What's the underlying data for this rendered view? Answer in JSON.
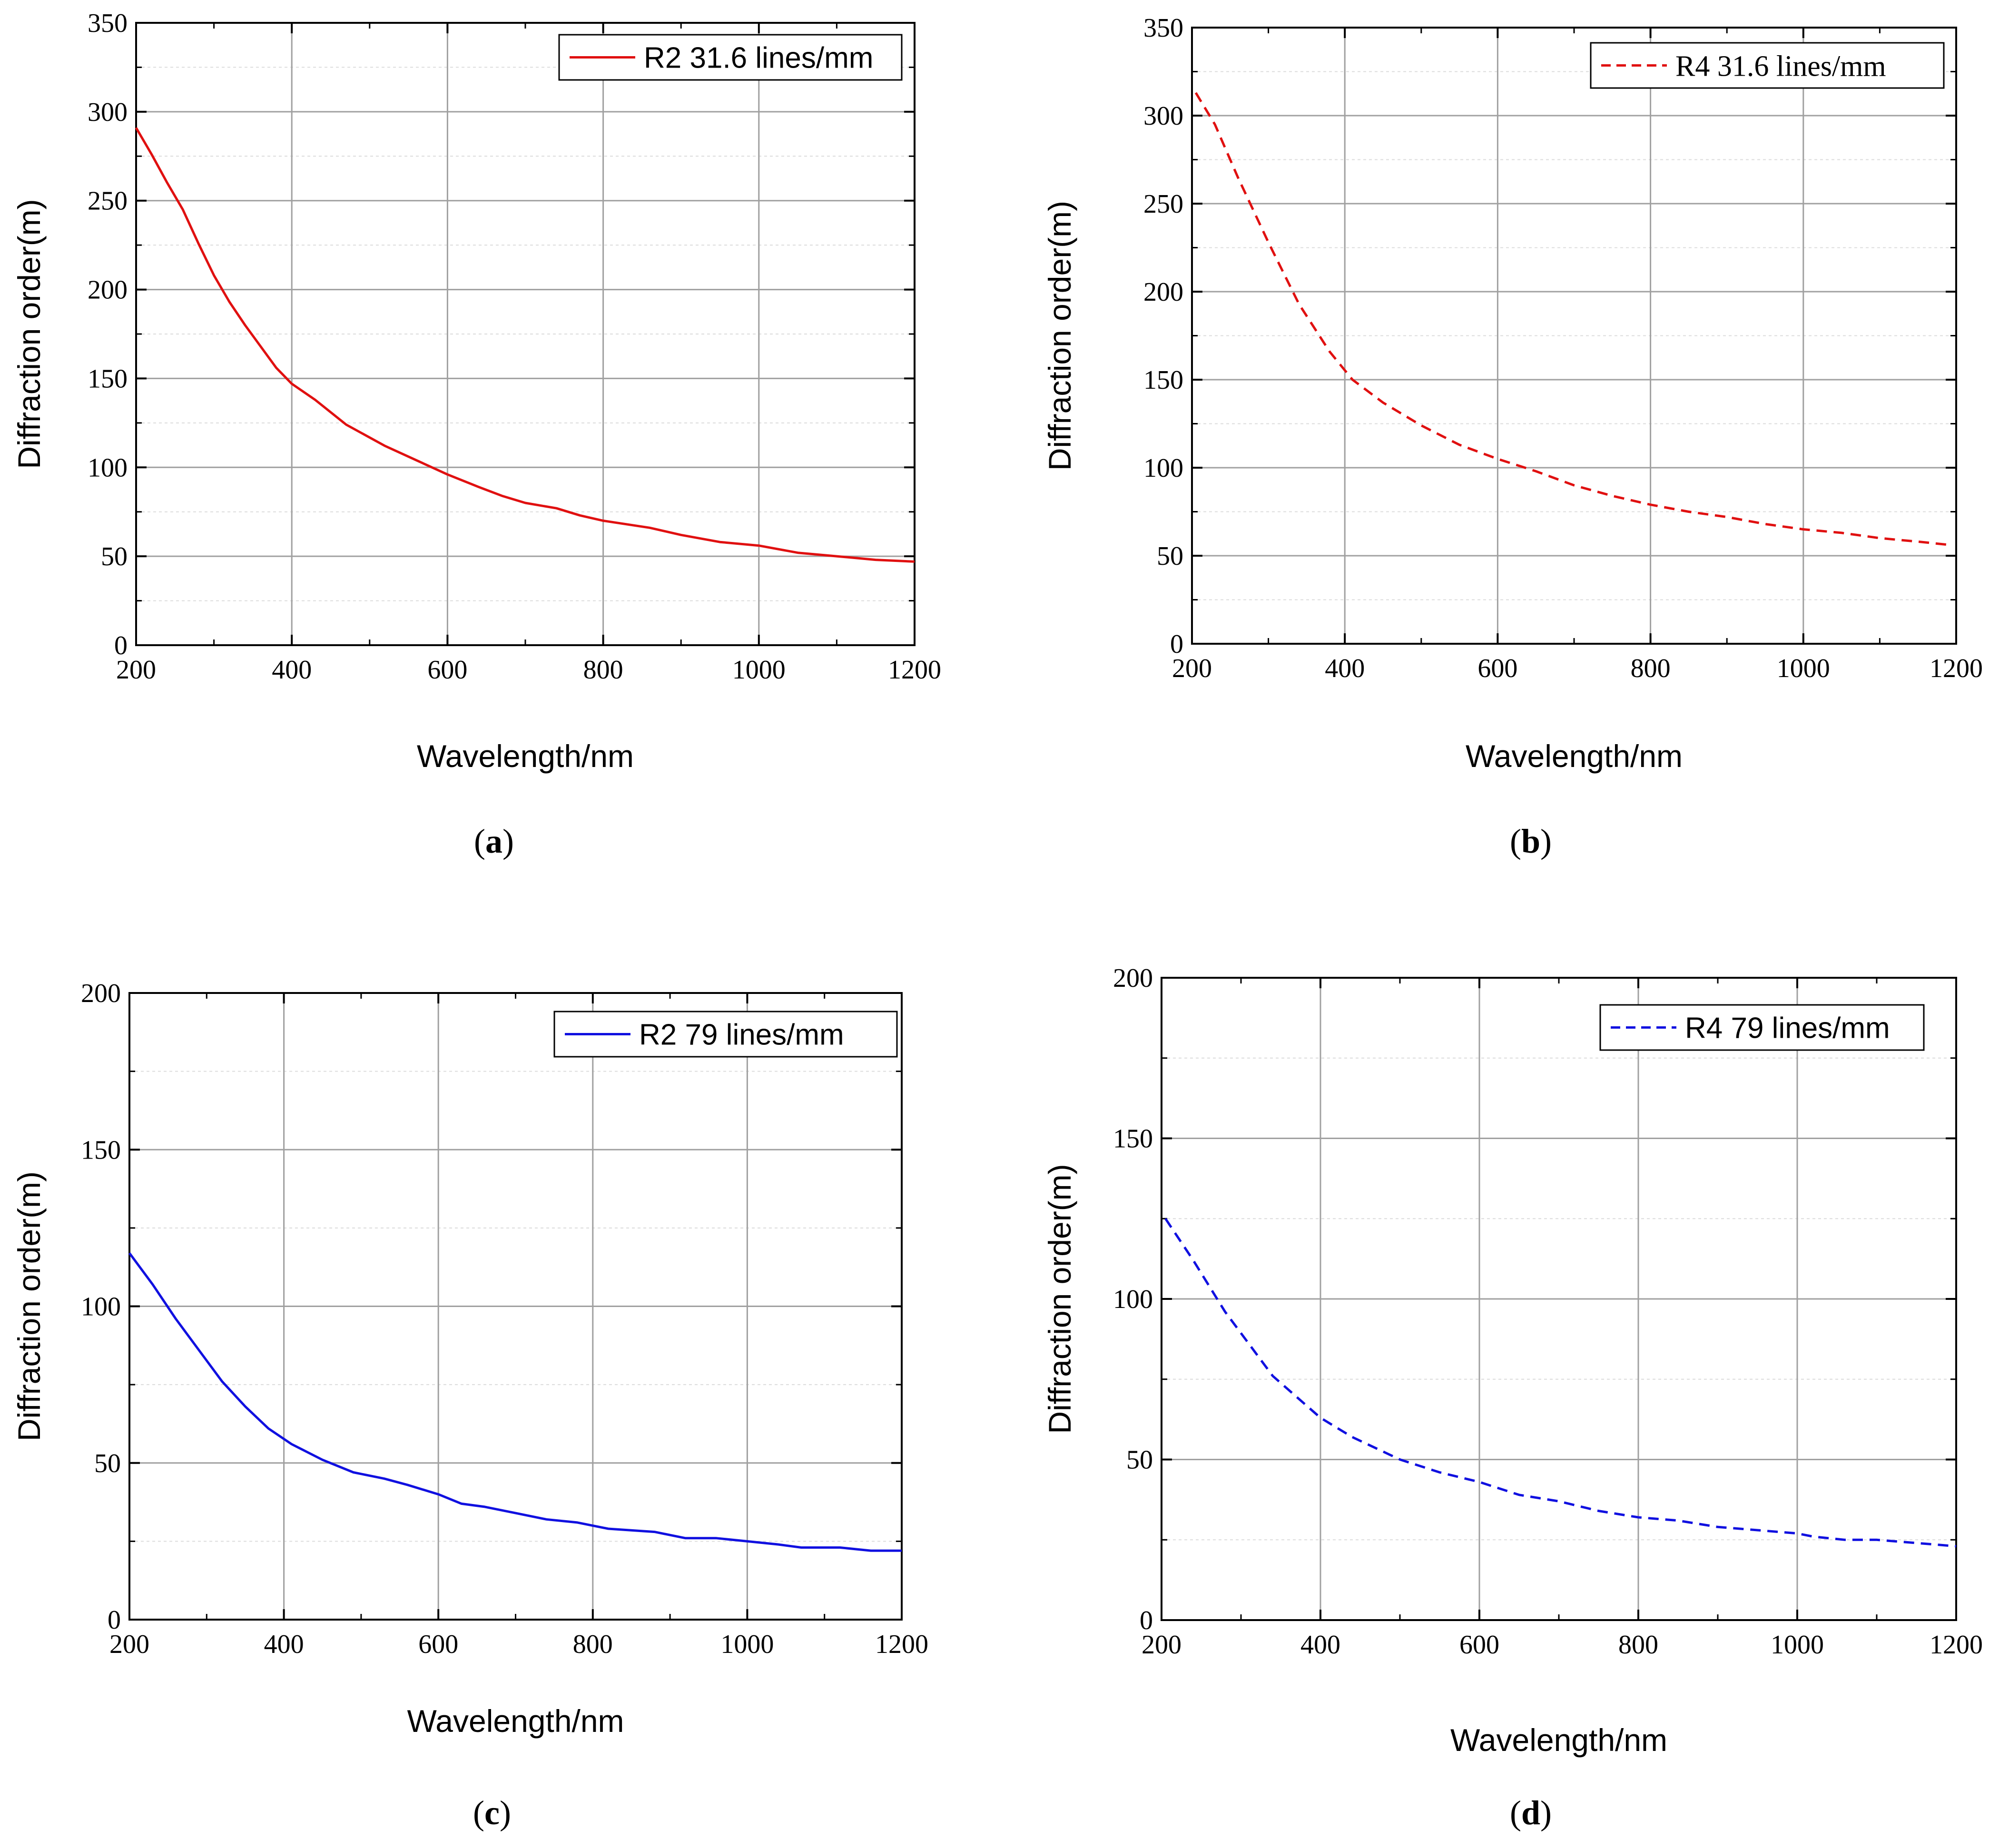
{
  "chart_data": [
    {
      "panel": "a",
      "type": "line",
      "title": "",
      "xlabel": "Wavelength/nm",
      "ylabel": "Diffraction order(m)",
      "xlim": [
        200,
        1200
      ],
      "ylim": [
        0,
        350
      ],
      "xticks": [
        200,
        400,
        600,
        800,
        1000,
        1200
      ],
      "yticks": [
        0,
        50,
        100,
        150,
        200,
        250,
        300,
        350
      ],
      "grid": true,
      "legend_position": "top-right",
      "panel_label": "a",
      "series": [
        {
          "name": "R2 31.6 lines/mm",
          "color": "#e01010",
          "dash": "solid",
          "x": [
            200,
            220,
            240,
            260,
            280,
            300,
            320,
            340,
            360,
            380,
            400,
            430,
            470,
            520,
            560,
            600,
            640,
            670,
            700,
            740,
            770,
            800,
            860,
            900,
            950,
            1000,
            1050,
            1100,
            1150,
            1200
          ],
          "y": [
            291,
            276,
            260,
            245,
            226,
            208,
            193,
            180,
            168,
            156,
            147,
            138,
            124,
            112,
            104,
            96,
            89,
            84,
            80,
            77,
            73,
            70,
            66,
            62,
            58,
            56,
            52,
            50,
            48,
            47
          ]
        }
      ]
    },
    {
      "panel": "b",
      "type": "line",
      "title": "",
      "xlabel": "Wavelength/nm",
      "ylabel": "Diffraction order(m)",
      "xlim": [
        200,
        1200
      ],
      "ylim": [
        0,
        350
      ],
      "xticks": [
        200,
        400,
        600,
        800,
        1000,
        1200
      ],
      "yticks": [
        0,
        50,
        100,
        150,
        200,
        250,
        300,
        350
      ],
      "grid": true,
      "legend_position": "top-right",
      "panel_label": "b",
      "series": [
        {
          "name": "R4 31.6 lines/mm",
          "color": "#e01010",
          "dash": "dashed",
          "x": [
            205,
            230,
            260,
            300,
            340,
            380,
            410,
            450,
            500,
            550,
            600,
            650,
            700,
            750,
            800,
            850,
            900,
            950,
            1000,
            1050,
            1100,
            1150,
            1195
          ],
          "y": [
            313,
            295,
            265,
            228,
            193,
            166,
            150,
            137,
            124,
            113,
            105,
            98,
            90,
            84,
            79,
            75,
            72,
            68,
            65,
            63,
            60,
            58,
            56
          ]
        }
      ]
    },
    {
      "panel": "c",
      "type": "line",
      "title": "",
      "xlabel": "Wavelength/nm",
      "ylabel": "Diffraction order(m)",
      "xlim": [
        200,
        1200
      ],
      "ylim": [
        0,
        200
      ],
      "xticks": [
        200,
        400,
        600,
        800,
        1000,
        1200
      ],
      "yticks": [
        0,
        50,
        100,
        150,
        200
      ],
      "grid": true,
      "legend_position": "top-right",
      "panel_label": "c",
      "series": [
        {
          "name": "R2 79 lines/mm",
          "color": "#1010e0",
          "dash": "solid",
          "x": [
            200,
            230,
            260,
            290,
            320,
            350,
            380,
            410,
            450,
            490,
            530,
            560,
            600,
            630,
            660,
            700,
            740,
            780,
            820,
            880,
            920,
            960,
            1000,
            1040,
            1070,
            1120,
            1160,
            1200
          ],
          "y": [
            117,
            107,
            96,
            86,
            76,
            68,
            61,
            56,
            51,
            47,
            45,
            43,
            40,
            37,
            36,
            34,
            32,
            31,
            29,
            28,
            26,
            26,
            25,
            24,
            23,
            23,
            22,
            22
          ]
        }
      ]
    },
    {
      "panel": "d",
      "type": "line",
      "title": "",
      "xlabel": "Wavelength/nm",
      "ylabel": "Diffraction order(m)",
      "xlim": [
        200,
        1200
      ],
      "ylim": [
        0,
        200
      ],
      "xticks": [
        200,
        400,
        600,
        800,
        1000,
        1200
      ],
      "yticks": [
        0,
        50,
        100,
        150,
        200
      ],
      "grid": true,
      "legend_position": "top-right",
      "panel_label": "d",
      "series": [
        {
          "name": "R4 79 lines/mm",
          "color": "#1010e0",
          "dash": "dashed",
          "x": [
            205,
            240,
            280,
            340,
            400,
            440,
            500,
            550,
            600,
            650,
            700,
            750,
            800,
            850,
            900,
            950,
            1000,
            1020,
            1060,
            1100,
            1150,
            1200
          ],
          "y": [
            125,
            112,
            96,
            76,
            63,
            57,
            50,
            46,
            43,
            39,
            37,
            34,
            32,
            31,
            29,
            28,
            27,
            26,
            25,
            25,
            24,
            23
          ]
        }
      ]
    }
  ]
}
